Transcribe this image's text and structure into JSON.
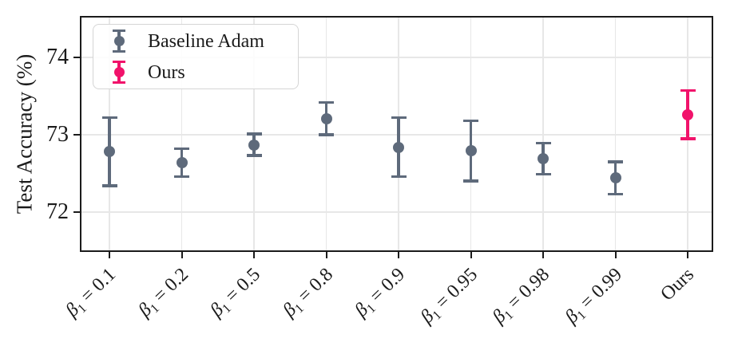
{
  "chart_data": {
    "type": "scatter",
    "subtype": "errorbar",
    "title": "",
    "xlabel": "",
    "ylabel": "Test Accuracy (%)",
    "ylim": [
      71.45,
      74.55
    ],
    "yticks": [
      72,
      73,
      74
    ],
    "grid": true,
    "legend_position": "upper left",
    "categories": [
      "β_1 = 0.1",
      "β_1 = 0.2",
      "β_1 = 0.5",
      "β_1 = 0.8",
      "β_1 = 0.9",
      "β_1 = 0.95",
      "β_1 = 0.98",
      "β_1 = 0.99",
      "Ours"
    ],
    "series": [
      {
        "name": "Baseline Adam",
        "color": "#5E6A7B",
        "means": [
          72.78,
          72.64,
          72.87,
          73.21,
          72.84,
          72.79,
          72.69,
          72.44,
          null
        ],
        "errors": [
          0.44,
          0.18,
          0.14,
          0.21,
          0.38,
          0.39,
          0.2,
          0.21,
          null
        ]
      },
      {
        "name": "Ours",
        "color": "#F1136B",
        "means": [
          null,
          null,
          null,
          null,
          null,
          null,
          null,
          null,
          73.26
        ],
        "errors": [
          null,
          null,
          null,
          null,
          null,
          null,
          null,
          null,
          0.31
        ]
      }
    ],
    "colors": {
      "grid": "#e7e7e7",
      "spine": "#1b1b1b",
      "text": "#1b1b1b"
    }
  }
}
